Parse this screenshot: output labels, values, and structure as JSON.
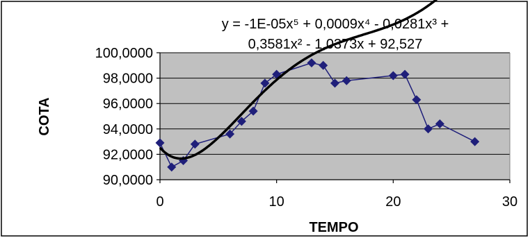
{
  "chart_data": {
    "type": "scatter",
    "equation_lines": [
      "y = -1E-05x⁵ + 0,0009x⁴ - 0,0281x³ +",
      "0,3581x² - 1,0373x + 92,527"
    ],
    "xlabel": "TEMPO",
    "ylabel": "COTA",
    "xlim": [
      0,
      30
    ],
    "ylim": [
      90,
      100
    ],
    "x_ticks": [
      0,
      10,
      20,
      30
    ],
    "x_tick_labels": [
      "0",
      "10",
      "20",
      "30"
    ],
    "y_ticks": [
      90,
      92,
      94,
      96,
      98,
      100
    ],
    "y_tick_labels": [
      "90,0000",
      "92,0000",
      "94,0000",
      "96,0000",
      "98,0000",
      "100,0000"
    ],
    "grid": "horizontal",
    "series": [
      {
        "color": "#1f1f7a",
        "marker": "diamond",
        "x": [
          0,
          1,
          2,
          3,
          6,
          7,
          8,
          9,
          10,
          13,
          14,
          15,
          16,
          20,
          21,
          22,
          23,
          24,
          27
        ],
        "y": [
          92.9,
          91.0,
          91.5,
          92.8,
          93.6,
          94.6,
          95.4,
          97.6,
          98.3,
          99.2,
          99.0,
          97.6,
          97.8,
          98.2,
          98.3,
          96.3,
          94.0,
          94.4,
          93.0
        ]
      }
    ],
    "trendline": {
      "type": "polynomial",
      "order": 5,
      "color": "#000000",
      "x_range": [
        0,
        27
      ]
    },
    "plot_background": "#c0c0c0"
  }
}
